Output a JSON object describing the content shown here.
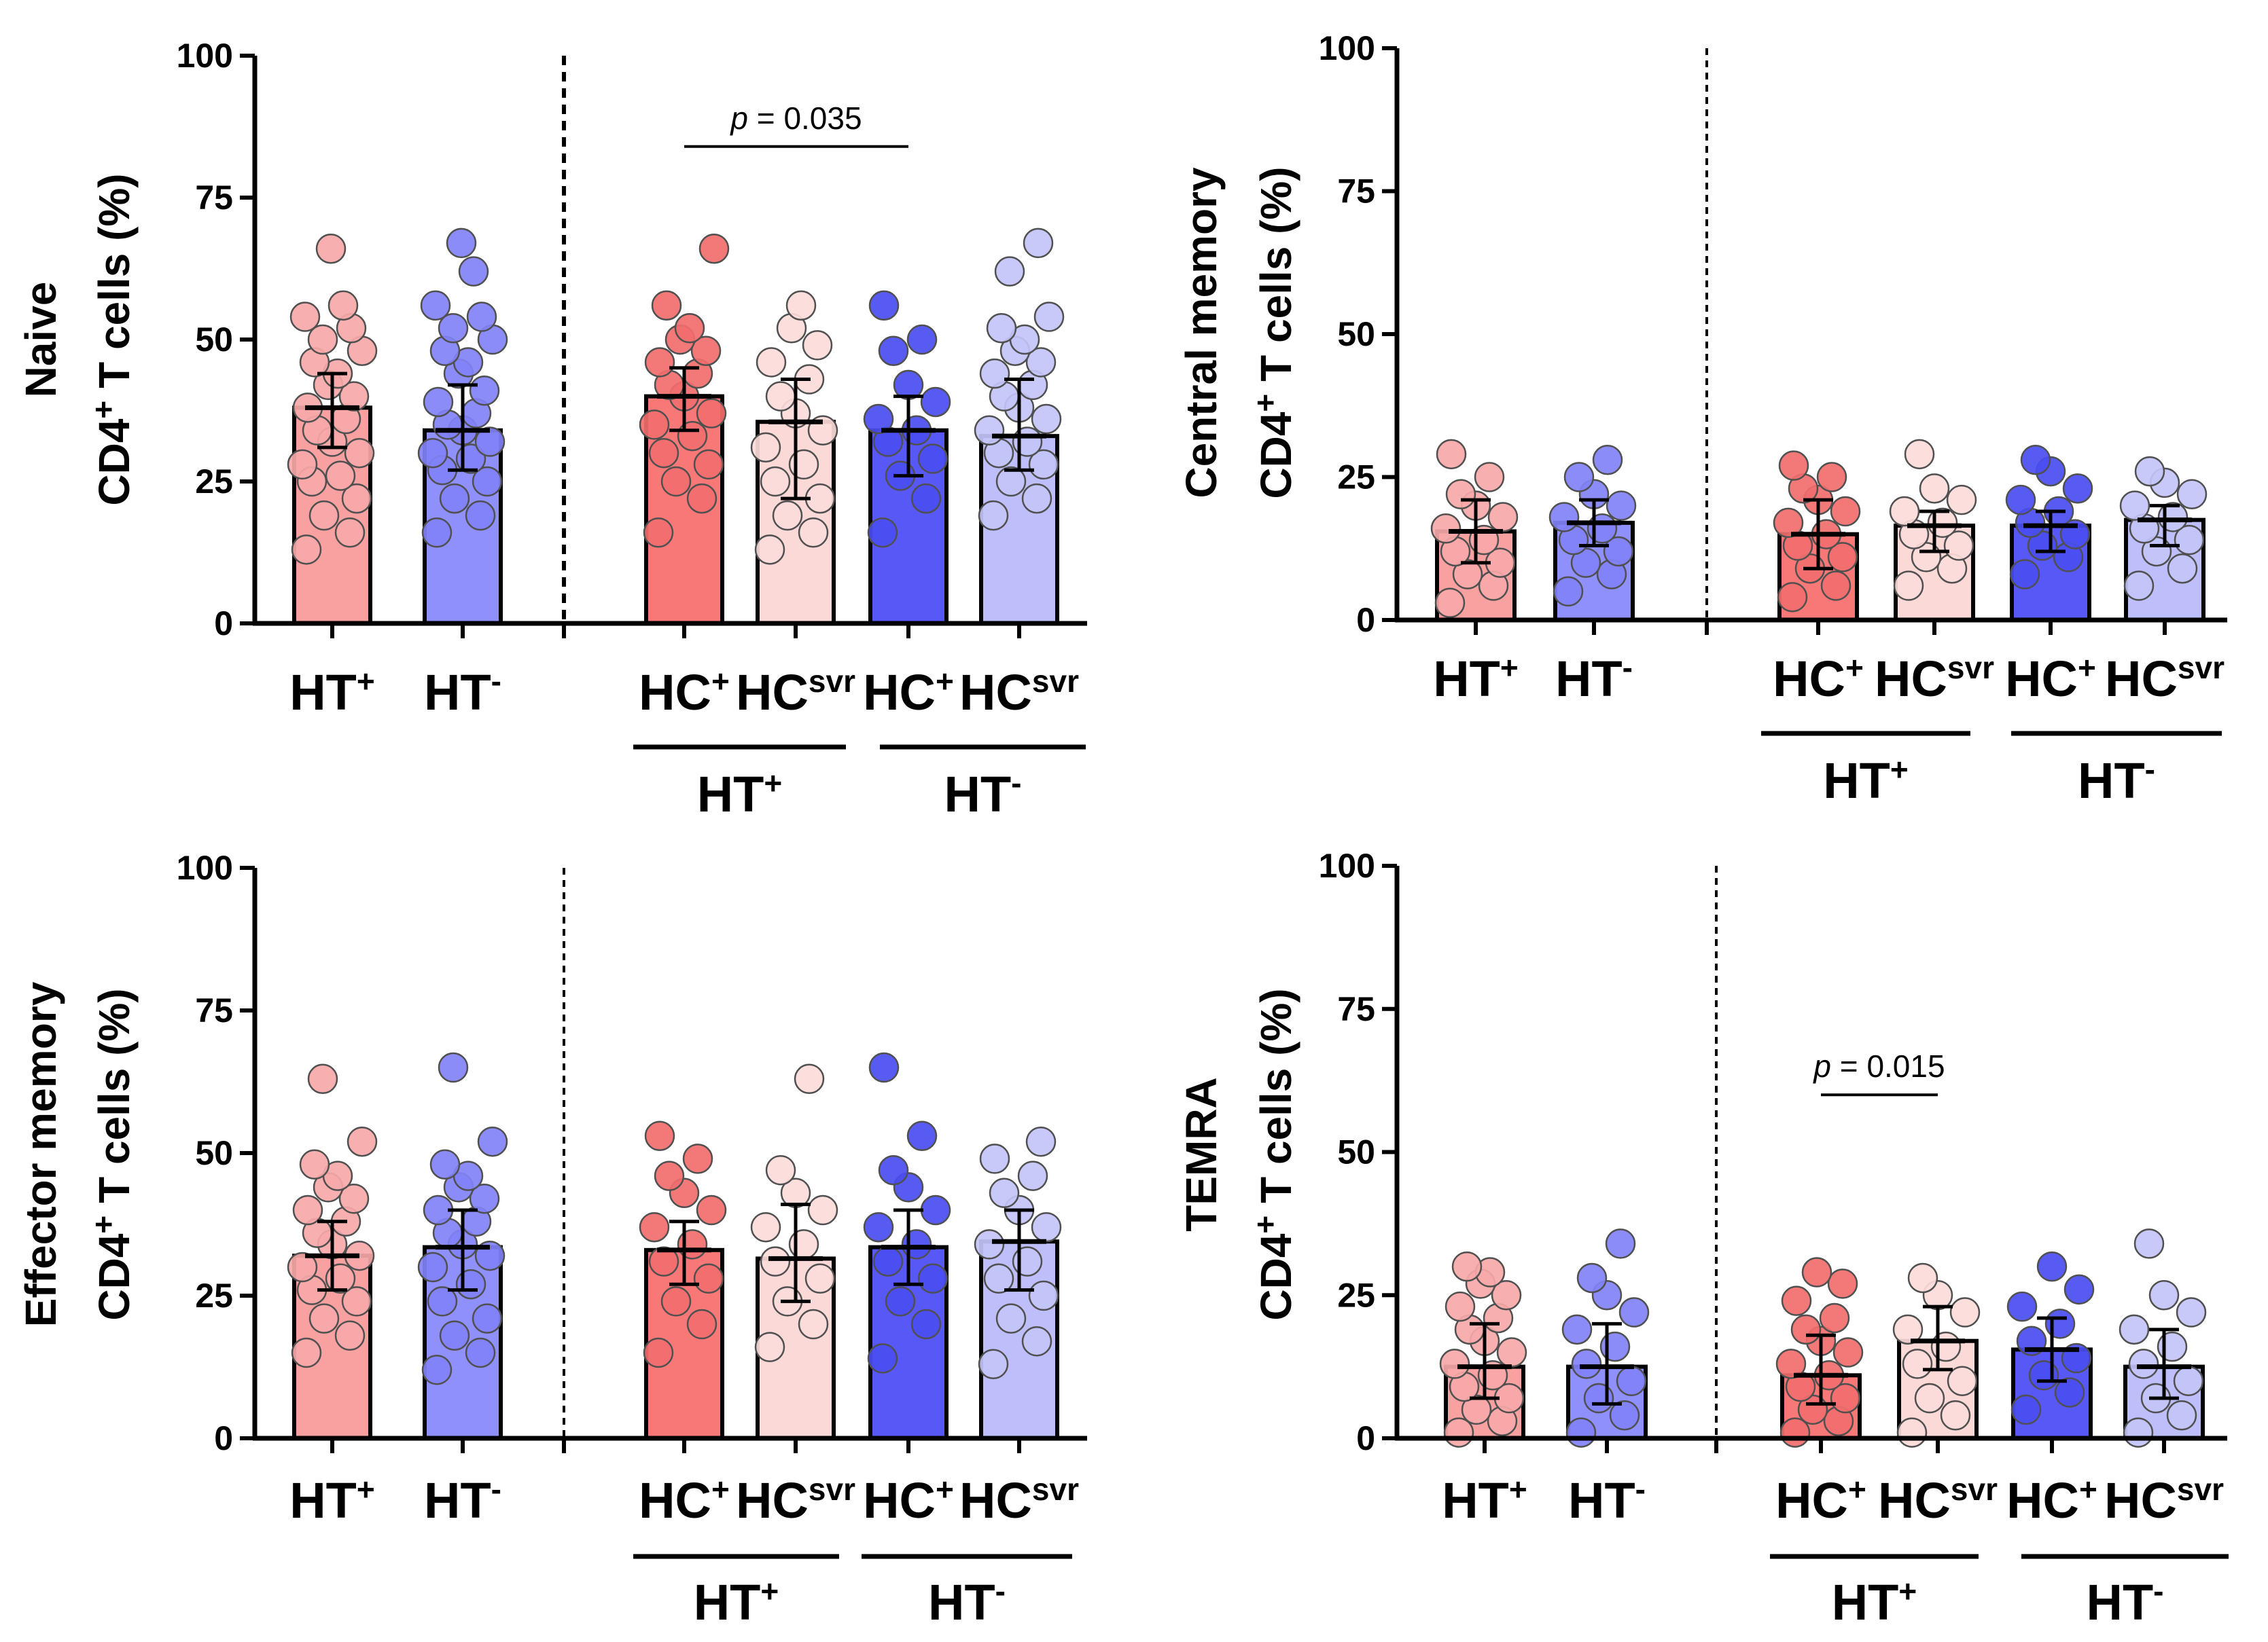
{
  "chart_data": [
    {
      "type": "bar",
      "panel": "Naive",
      "ylabel_line1": "Naive",
      "ylabel_line2": "CD4+ T cells (%)",
      "ylim": [
        0,
        100
      ],
      "yticks": [
        "0",
        "25",
        "50",
        "75",
        "100"
      ],
      "categories": [
        {
          "base": "HT",
          "sup": "+",
          "group": ""
        },
        {
          "base": "HT",
          "sup": "-",
          "group": ""
        },
        {
          "base": "HC",
          "sup": "+",
          "group": "HT+"
        },
        {
          "base": "HC",
          "sup": "svr",
          "group": "HT+"
        },
        {
          "base": "HC",
          "sup": "+",
          "group": "HT-"
        },
        {
          "base": "HC",
          "sup": "svr",
          "group": "HT-"
        }
      ],
      "group_labels": [
        {
          "base": "HT",
          "sup": "+"
        },
        {
          "base": "HT",
          "sup": "-"
        }
      ],
      "means": [
        38,
        34,
        40,
        35.5,
        34,
        33
      ],
      "errors": [
        [
          31,
          44
        ],
        [
          27,
          42
        ],
        [
          34,
          45
        ],
        [
          22,
          43
        ],
        [
          26,
          40
        ],
        [
          27,
          43
        ]
      ],
      "points": [
        [
          13,
          16,
          19,
          22,
          25,
          26,
          28,
          30,
          32,
          34,
          36,
          38,
          40,
          42,
          44,
          46,
          48,
          50,
          52,
          54,
          56,
          66
        ],
        [
          16,
          19,
          22,
          25,
          27,
          29,
          30,
          32,
          34,
          35,
          37,
          39,
          41,
          44,
          46,
          48,
          50,
          52,
          54,
          56,
          62,
          67
        ],
        [
          16,
          22,
          25,
          28,
          30,
          33,
          35,
          37,
          40,
          42,
          44,
          46,
          48,
          50,
          52,
          56,
          66
        ],
        [
          13,
          16,
          19,
          22,
          25,
          28,
          31,
          34,
          37,
          40,
          43,
          46,
          49,
          52,
          56
        ],
        [
          16,
          22,
          26,
          29,
          32,
          34,
          36,
          39,
          42,
          48,
          50,
          56
        ],
        [
          19,
          22,
          25,
          28,
          30,
          32,
          34,
          36,
          38,
          40,
          42,
          44,
          46,
          48,
          50,
          52,
          54,
          62,
          67
        ]
      ],
      "significance": {
        "from": 2,
        "to": 4,
        "label_italic": "p",
        "label_rest": " = 0.035",
        "y": 84
      }
    },
    {
      "type": "bar",
      "panel": "Central memory",
      "ylabel_line1": "Central memory",
      "ylabel_line2": "CD4+ T cells (%)",
      "ylim": [
        0,
        100
      ],
      "yticks": [
        "0",
        "25",
        "50",
        "75",
        "100"
      ],
      "categories": [
        {
          "base": "HT",
          "sup": "+",
          "group": ""
        },
        {
          "base": "HT",
          "sup": "-",
          "group": ""
        },
        {
          "base": "HC",
          "sup": "+",
          "group": "HT+"
        },
        {
          "base": "HC",
          "sup": "svr",
          "group": "HT+"
        },
        {
          "base": "HC",
          "sup": "+",
          "group": "HT-"
        },
        {
          "base": "HC",
          "sup": "svr",
          "group": "HT-"
        }
      ],
      "group_labels": [
        {
          "base": "HT",
          "sup": "+"
        },
        {
          "base": "HT",
          "sup": "-"
        }
      ],
      "means": [
        15.5,
        17,
        15,
        16.5,
        16.5,
        17.5
      ],
      "errors": [
        [
          10,
          21
        ],
        [
          13,
          21
        ],
        [
          9,
          21
        ],
        [
          12,
          19
        ],
        [
          12,
          19
        ],
        [
          13,
          20
        ]
      ],
      "points": [
        [
          3,
          6,
          8,
          10,
          12,
          14,
          16,
          18,
          20,
          22,
          25,
          29
        ],
        [
          5,
          8,
          10,
          12,
          14,
          16,
          18,
          20,
          22,
          25,
          28
        ],
        [
          4,
          6,
          9,
          11,
          13,
          15,
          17,
          19,
          21,
          23,
          25,
          27
        ],
        [
          6,
          9,
          11,
          13,
          15,
          17,
          19,
          21,
          23,
          29
        ],
        [
          8,
          11,
          13,
          15,
          17,
          19,
          21,
          23,
          26,
          28
        ],
        [
          6,
          9,
          12,
          14,
          16,
          18,
          20,
          22,
          24,
          26
        ]
      ]
    },
    {
      "type": "bar",
      "panel": "Effector memory",
      "ylabel_line1": "Effector memory",
      "ylabel_line2": "CD4+ T cells (%)",
      "ylim": [
        0,
        100
      ],
      "yticks": [
        "0",
        "25",
        "50",
        "75",
        "100"
      ],
      "categories": [
        {
          "base": "HT",
          "sup": "+",
          "group": ""
        },
        {
          "base": "HT",
          "sup": "-",
          "group": ""
        },
        {
          "base": "HC",
          "sup": "+",
          "group": "HT+"
        },
        {
          "base": "HC",
          "sup": "svr",
          "group": "HT+"
        },
        {
          "base": "HC",
          "sup": "+",
          "group": "HT-"
        },
        {
          "base": "HC",
          "sup": "svr",
          "group": "HT-"
        }
      ],
      "group_labels": [
        {
          "base": "HT",
          "sup": "+"
        },
        {
          "base": "HT",
          "sup": "-"
        }
      ],
      "means": [
        32,
        33.5,
        33,
        31.5,
        33.5,
        34.5
      ],
      "errors": [
        [
          26,
          38
        ],
        [
          26,
          40
        ],
        [
          27,
          38
        ],
        [
          24,
          41
        ],
        [
          27,
          40
        ],
        [
          26,
          40
        ]
      ],
      "points": [
        [
          15,
          18,
          21,
          24,
          26,
          28,
          30,
          32,
          34,
          36,
          38,
          40,
          42,
          44,
          46,
          48,
          52,
          63
        ],
        [
          12,
          15,
          18,
          21,
          24,
          27,
          30,
          32,
          34,
          36,
          38,
          40,
          42,
          44,
          46,
          48,
          52,
          65
        ],
        [
          15,
          20,
          24,
          28,
          31,
          34,
          37,
          40,
          43,
          46,
          49,
          53
        ],
        [
          16,
          20,
          24,
          28,
          31,
          34,
          37,
          40,
          43,
          47,
          63
        ],
        [
          14,
          20,
          24,
          28,
          31,
          34,
          37,
          40,
          44,
          47,
          53,
          65
        ],
        [
          13,
          17,
          21,
          25,
          28,
          31,
          34,
          37,
          40,
          43,
          46,
          49,
          52
        ]
      ]
    },
    {
      "type": "bar",
      "panel": "TEMRA",
      "ylabel_line1": "TEMRA",
      "ylabel_line2": "CD4+ T cells (%)",
      "ylim": [
        0,
        100
      ],
      "yticks": [
        "0",
        "25",
        "50",
        "75",
        "100"
      ],
      "categories": [
        {
          "base": "HT",
          "sup": "+",
          "group": ""
        },
        {
          "base": "HT",
          "sup": "-",
          "group": ""
        },
        {
          "base": "HC",
          "sup": "+",
          "group": "HT+"
        },
        {
          "base": "HC",
          "sup": "svr",
          "group": "HT+"
        },
        {
          "base": "HC",
          "sup": "+",
          "group": "HT-"
        },
        {
          "base": "HC",
          "sup": "svr",
          "group": "HT-"
        }
      ],
      "group_labels": [
        {
          "base": "HT",
          "sup": "+"
        },
        {
          "base": "HT",
          "sup": "-"
        }
      ],
      "means": [
        12.5,
        12.5,
        11,
        17,
        15.5,
        12.5
      ],
      "errors": [
        [
          7,
          20
        ],
        [
          6,
          20
        ],
        [
          6,
          18
        ],
        [
          12,
          23
        ],
        [
          10,
          21
        ],
        [
          7,
          19
        ]
      ],
      "points": [
        [
          1,
          3,
          5,
          7,
          9,
          11,
          13,
          15,
          17,
          19,
          21,
          23,
          25,
          27,
          29,
          30
        ],
        [
          1,
          4,
          7,
          10,
          13,
          16,
          19,
          22,
          25,
          28,
          34
        ],
        [
          1,
          3,
          5,
          7,
          9,
          11,
          13,
          15,
          17,
          19,
          21,
          24,
          27,
          29
        ],
        [
          1,
          4,
          7,
          10,
          13,
          16,
          19,
          22,
          25,
          28
        ],
        [
          5,
          8,
          11,
          14,
          17,
          20,
          23,
          26,
          30
        ],
        [
          1,
          4,
          7,
          10,
          13,
          16,
          19,
          22,
          25,
          34
        ]
      ],
      "significance": {
        "from": 2,
        "to": 3,
        "label_italic": "p",
        "label_rest": " = 0.015",
        "y": 60
      }
    }
  ],
  "colors": {
    "bar_fills": [
      "#F9A0A0",
      "#8F90FC",
      "#F87878",
      "#FBD9D7",
      "#5758F6",
      "#BEBFFA"
    ],
    "point_fills": [
      "#F7A8A8",
      "#8182F7",
      "#F26E6E",
      "#FCDCDA",
      "#4A4DF0",
      "#C3C4F7"
    ],
    "axis": "#000000"
  }
}
